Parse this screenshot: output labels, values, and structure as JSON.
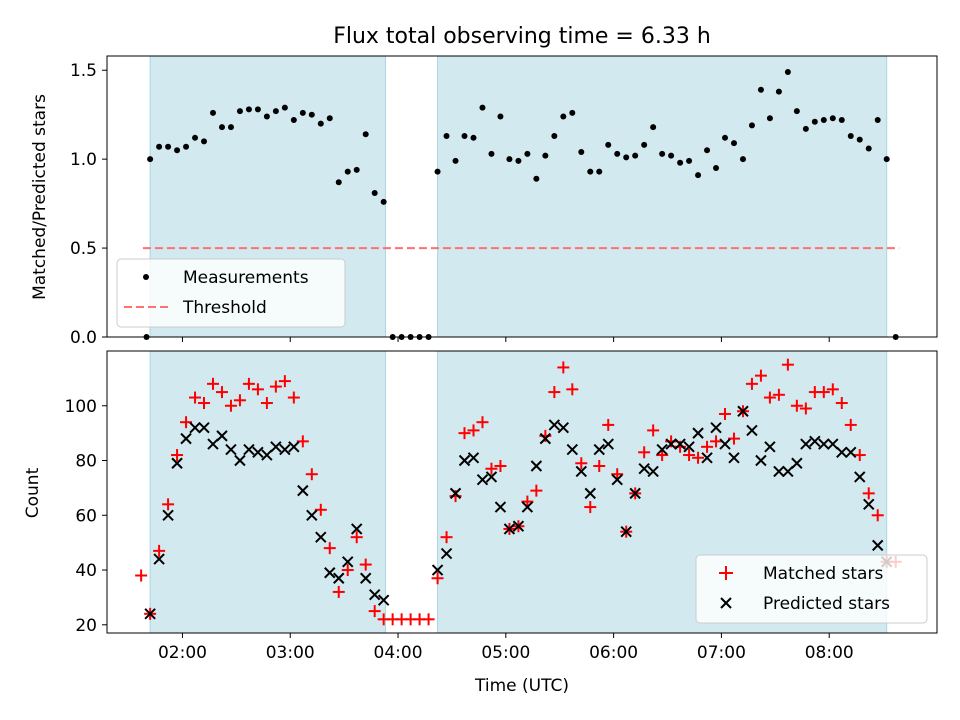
{
  "chart_data": [
    {
      "type": "scatter",
      "title": "Flux total observing time = 6.33 h",
      "ylabel": "Matched/Predicted stars",
      "xlim": [
        "01:18",
        "09:00"
      ],
      "ylim": [
        0,
        1.58
      ],
      "yticks": [
        "0.0",
        "0.5",
        "1.0",
        "1.5"
      ],
      "xticks": [
        "02:00",
        "03:00",
        "04:00",
        "05:00",
        "06:00",
        "07:00",
        "08:00"
      ],
      "grid": false,
      "legend_position": "lower-left",
      "shaded_intervals": [
        [
          "01:42",
          "03:53"
        ],
        [
          "04:22",
          "08:32"
        ]
      ],
      "shade_color": "#d3e9f0",
      "series": [
        {
          "name": "Measurements",
          "marker": "dot",
          "color": "#000000",
          "x": [
            "01:40",
            "01:42",
            "01:47",
            "01:52",
            "01:57",
            "02:02",
            "02:07",
            "02:12",
            "02:17",
            "02:22",
            "02:27",
            "02:32",
            "02:37",
            "02:42",
            "02:47",
            "02:52",
            "02:57",
            "03:02",
            "03:07",
            "03:12",
            "03:17",
            "03:22",
            "03:27",
            "03:32",
            "03:37",
            "03:42",
            "03:47",
            "03:52",
            "03:57",
            "04:02",
            "04:07",
            "04:12",
            "04:17",
            "04:22",
            "04:27",
            "04:32",
            "04:37",
            "04:42",
            "04:47",
            "04:52",
            "04:57",
            "05:02",
            "05:07",
            "05:12",
            "05:17",
            "05:22",
            "05:27",
            "05:32",
            "05:37",
            "05:42",
            "05:47",
            "05:52",
            "05:57",
            "06:02",
            "06:07",
            "06:12",
            "06:17",
            "06:22",
            "06:27",
            "06:32",
            "06:37",
            "06:42",
            "06:47",
            "06:52",
            "06:57",
            "07:02",
            "07:07",
            "07:12",
            "07:17",
            "07:22",
            "07:27",
            "07:32",
            "07:37",
            "07:42",
            "07:47",
            "07:52",
            "07:57",
            "08:02",
            "08:07",
            "08:12",
            "08:17",
            "08:22",
            "08:27",
            "08:32",
            "08:37"
          ],
          "y": [
            0.0,
            1.0,
            1.07,
            1.07,
            1.05,
            1.07,
            1.12,
            1.1,
            1.26,
            1.18,
            1.18,
            1.27,
            1.28,
            1.28,
            1.24,
            1.27,
            1.29,
            1.22,
            1.26,
            1.25,
            1.2,
            1.23,
            0.87,
            0.93,
            0.94,
            1.14,
            0.81,
            0.76,
            0.0,
            0.0,
            0.0,
            0.0,
            0.0,
            0.93,
            1.13,
            0.99,
            1.13,
            1.12,
            1.29,
            1.03,
            1.24,
            1.0,
            0.99,
            1.03,
            0.89,
            1.02,
            1.13,
            1.24,
            1.26,
            1.04,
            0.93,
            0.93,
            1.08,
            1.03,
            1.01,
            1.02,
            1.08,
            1.18,
            1.03,
            1.02,
            0.98,
            0.99,
            0.91,
            1.05,
            0.95,
            1.12,
            1.09,
            1.0,
            1.19,
            1.39,
            1.23,
            1.38,
            1.49,
            1.27,
            1.17,
            1.21,
            1.22,
            1.23,
            1.22,
            1.13,
            1.11,
            1.06,
            1.22,
            1.0,
            0.0
          ]
        },
        {
          "name": "Threshold",
          "style": "dashed",
          "color": "#ff7070",
          "x": [
            "01:38",
            "08:39"
          ],
          "y": [
            0.5,
            0.5
          ]
        }
      ]
    },
    {
      "type": "scatter",
      "title": "",
      "xlabel": "Time (UTC)",
      "ylabel": "Count",
      "xlim": [
        "01:18",
        "09:00"
      ],
      "ylim": [
        17,
        120
      ],
      "yticks": [
        "20",
        "40",
        "60",
        "80",
        "100"
      ],
      "xticks": [
        "02:00",
        "03:00",
        "04:00",
        "05:00",
        "06:00",
        "07:00",
        "08:00"
      ],
      "grid": false,
      "legend_position": "lower-right",
      "shaded_intervals": [
        [
          "01:42",
          "03:53"
        ],
        [
          "04:22",
          "08:32"
        ]
      ],
      "shade_color": "#d3e9f0",
      "series": [
        {
          "name": "Matched stars",
          "marker": "plus",
          "color": "#ff0000",
          "x": [
            "01:37",
            "01:42",
            "01:47",
            "01:52",
            "01:57",
            "02:02",
            "02:07",
            "02:12",
            "02:17",
            "02:22",
            "02:27",
            "02:32",
            "02:37",
            "02:42",
            "02:47",
            "02:52",
            "02:57",
            "03:02",
            "03:07",
            "03:12",
            "03:17",
            "03:22",
            "03:27",
            "03:32",
            "03:37",
            "03:42",
            "03:47",
            "03:52",
            "03:57",
            "04:02",
            "04:07",
            "04:12",
            "04:17",
            "04:22",
            "04:27",
            "04:32",
            "04:37",
            "04:42",
            "04:47",
            "04:52",
            "04:57",
            "05:02",
            "05:07",
            "05:12",
            "05:17",
            "05:22",
            "05:27",
            "05:32",
            "05:37",
            "05:42",
            "05:47",
            "05:52",
            "05:57",
            "06:02",
            "06:07",
            "06:12",
            "06:17",
            "06:22",
            "06:27",
            "06:32",
            "06:37",
            "06:42",
            "06:47",
            "06:52",
            "06:57",
            "07:02",
            "07:07",
            "07:12",
            "07:17",
            "07:22",
            "07:27",
            "07:32",
            "07:37",
            "07:42",
            "07:47",
            "07:52",
            "07:57",
            "08:02",
            "08:07",
            "08:12",
            "08:17",
            "08:22",
            "08:27",
            "08:32",
            "08:37"
          ],
          "y": [
            38,
            24,
            47,
            64,
            82,
            94,
            103,
            101,
            108,
            105,
            100,
            102,
            108,
            106,
            101,
            107,
            109,
            103,
            87,
            75,
            62,
            48,
            32,
            40,
            52,
            42,
            25,
            22,
            22,
            22,
            22,
            22,
            22,
            37,
            52,
            67,
            90,
            91,
            94,
            77,
            78,
            55,
            56,
            65,
            69,
            89,
            105,
            114,
            106,
            79,
            63,
            78,
            93,
            75,
            54,
            68,
            83,
            91,
            82,
            87,
            85,
            82,
            81,
            85,
            87,
            97,
            88,
            98,
            108,
            111,
            103,
            104,
            115,
            100,
            99,
            105,
            105,
            106,
            101,
            93,
            82,
            68,
            60,
            43,
            43
          ]
        },
        {
          "name": "Predicted stars",
          "marker": "x",
          "color": "#000000",
          "x": [
            "01:42",
            "01:47",
            "01:52",
            "01:57",
            "02:02",
            "02:07",
            "02:12",
            "02:17",
            "02:22",
            "02:27",
            "02:32",
            "02:37",
            "02:42",
            "02:47",
            "02:52",
            "02:57",
            "03:02",
            "03:07",
            "03:12",
            "03:17",
            "03:22",
            "03:27",
            "03:32",
            "03:37",
            "03:42",
            "03:47",
            "03:52",
            "04:22",
            "04:27",
            "04:32",
            "04:37",
            "04:42",
            "04:47",
            "04:52",
            "04:57",
            "05:02",
            "05:07",
            "05:12",
            "05:17",
            "05:22",
            "05:27",
            "05:32",
            "05:37",
            "05:42",
            "05:47",
            "05:52",
            "05:57",
            "06:02",
            "06:07",
            "06:12",
            "06:17",
            "06:22",
            "06:27",
            "06:32",
            "06:37",
            "06:42",
            "06:47",
            "06:52",
            "06:57",
            "07:02",
            "07:07",
            "07:12",
            "07:17",
            "07:22",
            "07:27",
            "07:32",
            "07:37",
            "07:42",
            "07:47",
            "07:52",
            "07:57",
            "08:02",
            "08:07",
            "08:12",
            "08:17",
            "08:22",
            "08:27",
            "08:32"
          ],
          "y": [
            24,
            44,
            60,
            79,
            88,
            92,
            92,
            86,
            89,
            84,
            80,
            84,
            83,
            82,
            85,
            84,
            85,
            69,
            60,
            52,
            39,
            37,
            43,
            55,
            37,
            31,
            29,
            40,
            46,
            68,
            80,
            81,
            73,
            74,
            63,
            55,
            56,
            63,
            78,
            88,
            93,
            92,
            84,
            76,
            68,
            84,
            86,
            73,
            54,
            68,
            77,
            76,
            84,
            86,
            86,
            85,
            90,
            81,
            92,
            86,
            81,
            98,
            91,
            80,
            85,
            76,
            76,
            79,
            86,
            87,
            86,
            86,
            83,
            83,
            74,
            64,
            49,
            43
          ]
        }
      ]
    }
  ]
}
